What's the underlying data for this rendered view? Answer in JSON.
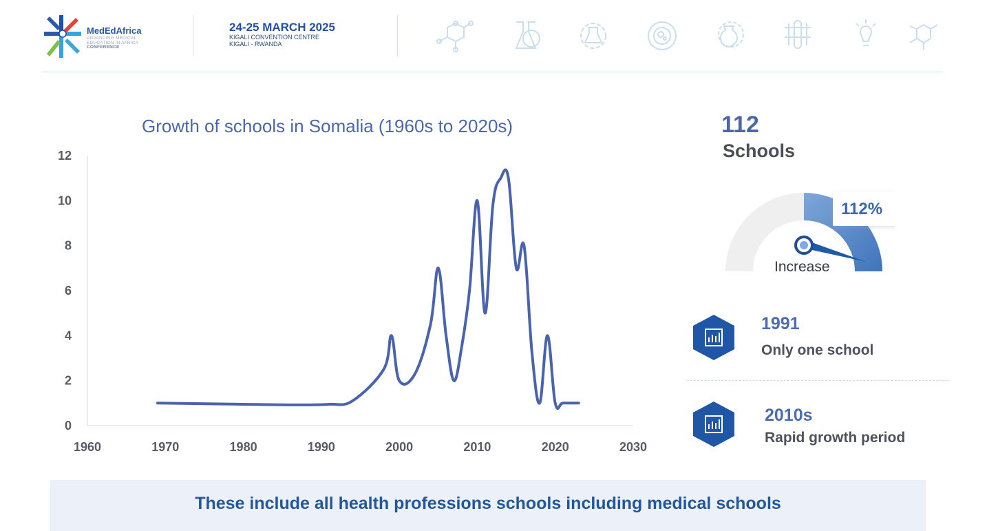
{
  "header": {
    "logo_name": "MedEdAfrica",
    "logo_tag_1": "ADVANCING MEDICAL",
    "logo_tag_2": "EDUCATION IN AFRICA",
    "logo_tag_3": "CONFERENCE",
    "event_date": "24-25 MARCH 2025",
    "event_venue": "KIGALI CONVENTION CENTRE",
    "event_city": "KIGALI - RWANDA",
    "icons": [
      "molecule-icon",
      "flask-icon",
      "gear-flask-icon",
      "cell-icon",
      "beaker-gear-icon",
      "test-tubes-icon",
      "lightbulb-icon",
      "hexagon-molecule-icon"
    ]
  },
  "chart_data": {
    "type": "line",
    "title": "Growth of schools in Somalia (1960s to 2020s)",
    "xlabel": "",
    "ylabel": "",
    "xlim": [
      1960,
      2030
    ],
    "ylim": [
      0,
      12
    ],
    "x_ticks": [
      1960,
      1970,
      1980,
      1990,
      2000,
      2010,
      2020,
      2030
    ],
    "y_ticks": [
      0,
      2,
      4,
      6,
      8,
      10,
      12
    ],
    "grid": false,
    "color": "#4a63ad",
    "series": [
      {
        "x": [
          1969,
          1980,
          1987,
          1991,
          1994,
          1998,
          1999,
          2000,
          2002,
          2004,
          2005,
          2006,
          2007,
          2008,
          2009,
          2010,
          2011,
          2012,
          2013,
          2014,
          2015,
          2016,
          2017,
          2018,
          2019,
          2020,
          2021,
          2023
        ],
        "y": [
          1,
          0.95,
          0.92,
          0.95,
          1.1,
          2.5,
          4,
          2,
          2.3,
          4.5,
          7,
          4,
          2,
          3.5,
          6,
          10,
          5,
          9.8,
          11,
          11,
          7,
          8,
          3.3,
          1,
          4,
          1,
          1,
          1
        ]
      }
    ]
  },
  "stats": {
    "count": "112",
    "count_label": "Schools",
    "gauge_value": "112%",
    "gauge_caption": "Increase",
    "gauge_fill_fraction": 0.5
  },
  "info": [
    {
      "year": "1991",
      "text": "Only one school",
      "icon": "bar-chart-icon"
    },
    {
      "year": "2010s",
      "text": "Rapid growth period",
      "icon": "bar-chart-icon"
    }
  ],
  "footer": {
    "text": "These include all health professions schools including medical schools"
  },
  "colors": {
    "accent": "#2a5aa8",
    "line": "#4a63ad",
    "footer_bg": "#ecf1f9"
  }
}
